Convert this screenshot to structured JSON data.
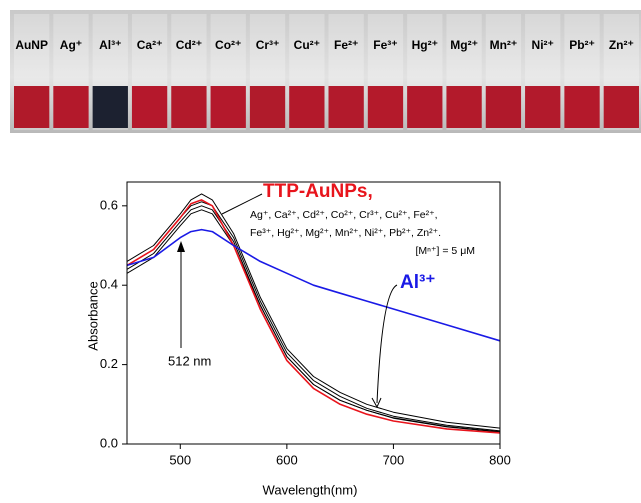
{
  "photo": {
    "labels": [
      "AuNP",
      "Ag⁺",
      "Al³⁺",
      "Ca²⁺",
      "Cd²⁺",
      "Co²⁺",
      "Cr³⁺",
      "Cu²⁺",
      "Fe²⁺",
      "Fe³⁺",
      "Hg²⁺",
      "Mg²⁺",
      "Mn²⁺",
      "Ni²⁺",
      "Pb²⁺",
      "Zn²⁺"
    ],
    "cuvette_colors": [
      "#b01a2a",
      "#b3192b",
      "#1c2130",
      "#b5182c",
      "#b21a2b",
      "#b4192c",
      "#b01b2b",
      "#b3192b",
      "#b21a2c",
      "#b41a2b",
      "#b2192c",
      "#b31a2b",
      "#b0192b",
      "#b21a2c",
      "#b4192b",
      "#b21a2b"
    ]
  },
  "chart_data": {
    "type": "line",
    "x_label": "Wavelength(nm)",
    "y_label": "Absorbance",
    "x": [
      450,
      475,
      500,
      510,
      520,
      530,
      550,
      575,
      600,
      625,
      650,
      675,
      700,
      750,
      800
    ],
    "series": [
      {
        "color": "#000000",
        "values": [
          0.46,
          0.5,
          0.58,
          0.615,
          0.63,
          0.615,
          0.53,
          0.37,
          0.24,
          0.17,
          0.13,
          0.1,
          0.08,
          0.055,
          0.04
        ]
      },
      {
        "color": "#000000",
        "values": [
          0.45,
          0.49,
          0.57,
          0.6,
          0.61,
          0.6,
          0.52,
          0.36,
          0.23,
          0.16,
          0.12,
          0.09,
          0.07,
          0.047,
          0.033
        ]
      },
      {
        "color": "#000000",
        "values": [
          0.44,
          0.48,
          0.56,
          0.59,
          0.6,
          0.59,
          0.51,
          0.35,
          0.22,
          0.15,
          0.11,
          0.085,
          0.065,
          0.043,
          0.03
        ]
      },
      {
        "color": "#000000",
        "values": [
          0.43,
          0.47,
          0.55,
          0.58,
          0.59,
          0.58,
          0.5,
          0.35,
          0.22,
          0.15,
          0.11,
          0.085,
          0.066,
          0.044,
          0.031
        ]
      },
      {
        "color": "#e8141c",
        "values": [
          0.45,
          0.49,
          0.57,
          0.605,
          0.615,
          0.6,
          0.5,
          0.34,
          0.21,
          0.14,
          0.1,
          0.075,
          0.058,
          0.038,
          0.028
        ]
      },
      {
        "color": "#1a1ae6",
        "values": [
          0.45,
          0.47,
          0.52,
          0.535,
          0.54,
          0.535,
          0.5,
          0.46,
          0.43,
          0.4,
          0.38,
          0.36,
          0.34,
          0.3,
          0.26
        ]
      }
    ],
    "xlim": [
      450,
      800
    ],
    "xticks": [
      500,
      600,
      700,
      800
    ],
    "ylim": [
      0,
      0.66
    ],
    "yticks": [
      {
        "value": 0,
        "label": "0.0"
      },
      0.2,
      0.4,
      0.6
    ],
    "annotations": {
      "main": "TTP-AuNPs,",
      "ions_1": "Ag⁺, Ca²⁺, Cd²⁺, Co²⁺, Cr³⁺, Cu²⁺, Fe²⁺,",
      "ions_2": "Fe³⁺, Hg²⁺, Mg²⁺, Mn²⁺, Ni²⁺, Pb²⁺, Zn²⁺.",
      "conc": "[Mⁿ⁺] = 5 μM",
      "al": "Al³⁺",
      "peak": "512 nm"
    }
  }
}
